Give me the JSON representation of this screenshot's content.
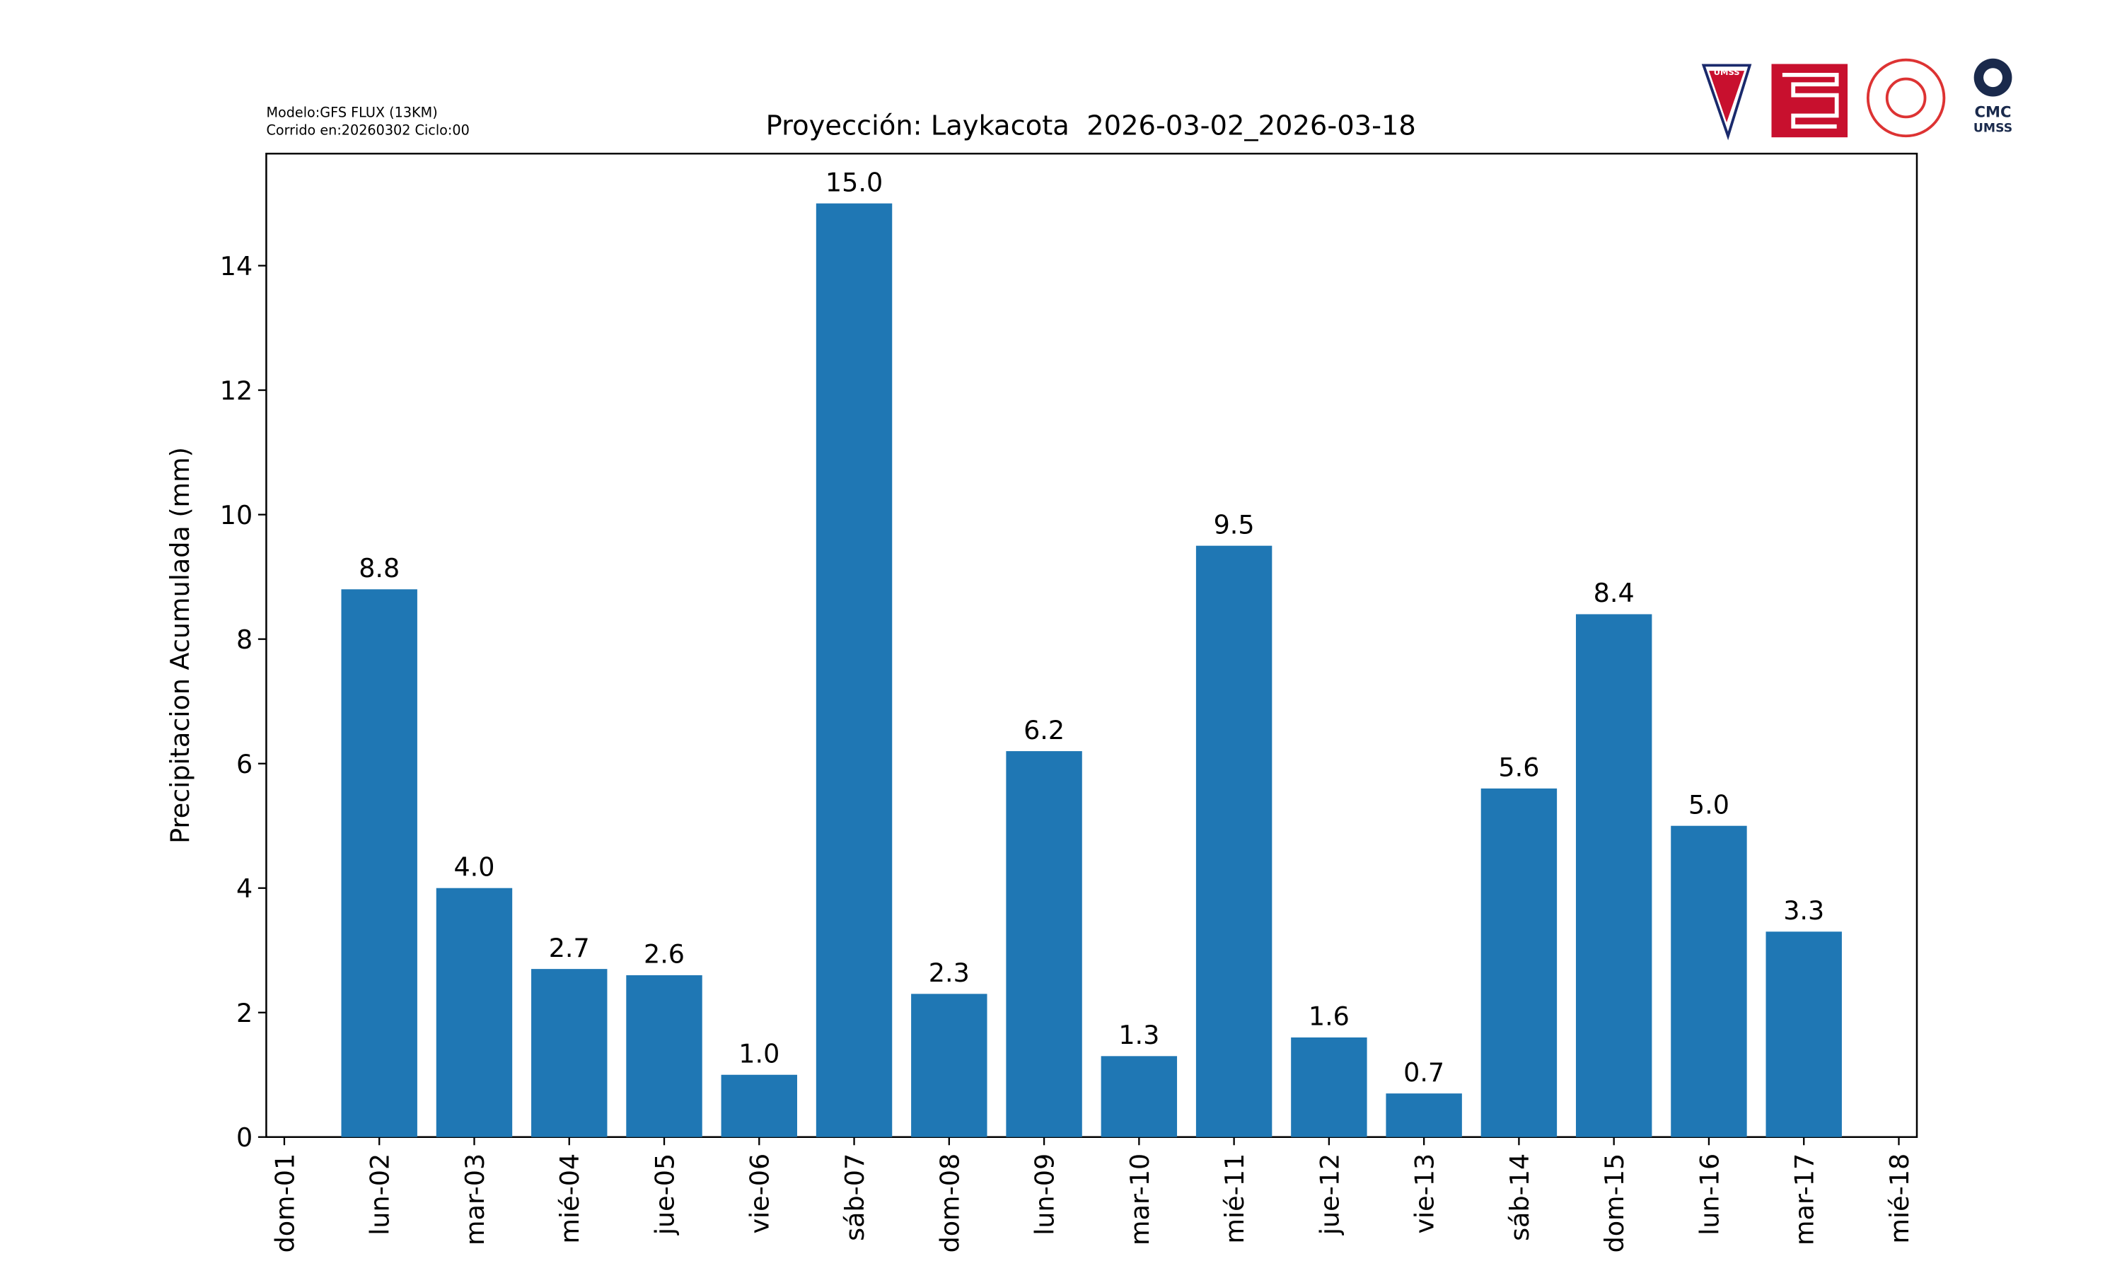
{
  "chart_data": {
    "type": "bar",
    "title": "Proyección: Laykacota  2026-03-02_2026-03-18",
    "annotations": [
      "Modelo:GFS FLUX (13KM)",
      "Corrido en:20260302 Ciclo:00"
    ],
    "logos": [
      "UMSS",
      "CMC",
      "UMSS"
    ],
    "ylabel": "Precipitacion Acumulada (mm)",
    "categories": [
      "dom-01",
      "lun-02",
      "mar-03",
      "mié-04",
      "jue-05",
      "vie-06",
      "sáb-07",
      "dom-08",
      "lun-09",
      "mar-10",
      "mié-11",
      "jue-12",
      "vie-13",
      "sáb-14",
      "dom-15",
      "lun-16",
      "mar-17",
      "mié-18"
    ],
    "values": [
      null,
      8.8,
      4.0,
      2.7,
      2.6,
      1.0,
      15.0,
      2.3,
      6.2,
      1.3,
      9.5,
      1.6,
      0.7,
      5.6,
      8.4,
      5.0,
      3.3,
      null
    ],
    "value_labels": [
      null,
      "8.8",
      "4.0",
      "2.7",
      "2.6",
      "1.0",
      "15.0",
      "2.3",
      "6.2",
      "1.3",
      "9.5",
      "1.6",
      "0.7",
      "5.6",
      "8.4",
      "5.0",
      "3.3",
      null
    ],
    "color": "#1f77b4",
    "ylim": [
      0,
      15.8
    ],
    "yticks": [
      0,
      2,
      4,
      6,
      8,
      10,
      12,
      14
    ],
    "grid": false
  }
}
